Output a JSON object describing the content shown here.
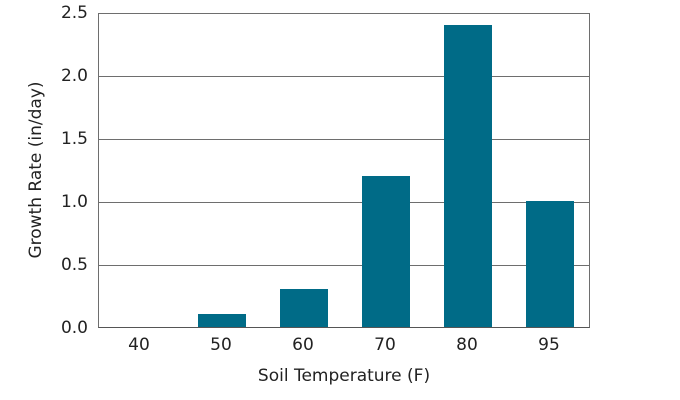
{
  "chart_data": {
    "type": "bar",
    "title": "",
    "xlabel": "Soil Temperature (F)",
    "ylabel": "Growth Rate (in/day)",
    "categories": [
      "40",
      "50",
      "60",
      "70",
      "80",
      "95"
    ],
    "values": [
      0.0,
      0.1,
      0.3,
      1.2,
      2.4,
      1.0
    ],
    "ylim": [
      0,
      2.5
    ],
    "yticks": [
      "0.0",
      "0.5",
      "1.0",
      "1.5",
      "2.0",
      "2.5"
    ],
    "grid": "horizontal",
    "bar_color": "#006b87",
    "legend": null
  }
}
